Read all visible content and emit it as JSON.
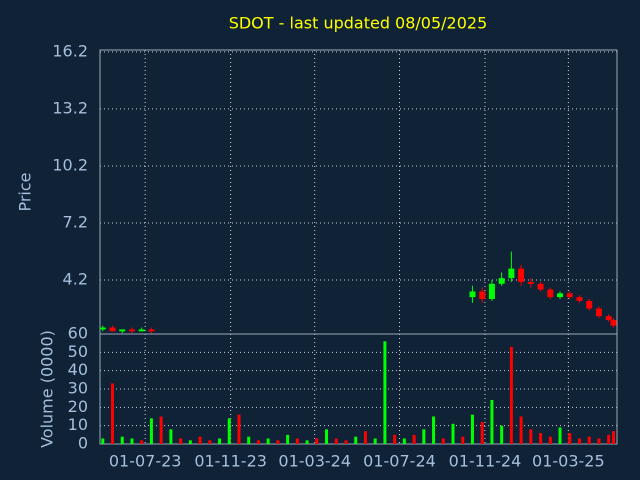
{
  "chart_data": [
    {
      "type": "candlestick",
      "title": "SDOT - last updated 08/05/2025",
      "y_label": "Price",
      "x": [
        "01-05-23",
        "15-05-23",
        "29-05-23",
        "12-06-23",
        "26-06-23",
        "10-07-23",
        "24-07-23",
        "07-08-23",
        "21-08-23",
        "04-09-23",
        "18-09-23",
        "02-10-23",
        "16-10-23",
        "30-10-23",
        "13-11-23",
        "27-11-23",
        "11-12-23",
        "25-12-23",
        "08-01-24",
        "22-01-24",
        "05-02-24",
        "19-02-24",
        "04-03-24",
        "18-03-24",
        "01-04-24",
        "15-04-24",
        "29-04-24",
        "13-05-24",
        "27-05-24",
        "10-06-24",
        "24-06-24",
        "08-07-24",
        "22-07-24",
        "05-08-24",
        "19-08-24",
        "02-09-24",
        "16-09-24",
        "30-09-24",
        "14-10-24",
        "28-10-24",
        "11-11-24",
        "25-11-24",
        "09-12-24",
        "23-12-24",
        "06-01-25",
        "20-01-25",
        "03-02-25",
        "17-02-25",
        "03-03-25",
        "17-03-25",
        "31-03-25",
        "14-04-25",
        "28-04-25",
        "05-05-25"
      ],
      "open": [
        1.6,
        1.7,
        1.5,
        1.6,
        1.5,
        1.6,
        null,
        null,
        null,
        null,
        null,
        null,
        null,
        null,
        null,
        null,
        null,
        null,
        null,
        null,
        null,
        null,
        null,
        null,
        null,
        null,
        null,
        null,
        null,
        null,
        null,
        null,
        null,
        null,
        null,
        null,
        null,
        null,
        3.3,
        3.6,
        3.2,
        4.0,
        4.3,
        4.8,
        4.1,
        4.0,
        3.7,
        3.3,
        3.5,
        3.3,
        3.1,
        2.7,
        2.3,
        2.1
      ],
      "high": [
        1.8,
        1.8,
        1.6,
        1.7,
        1.7,
        1.7,
        null,
        null,
        null,
        null,
        null,
        null,
        null,
        null,
        null,
        null,
        null,
        null,
        null,
        null,
        null,
        null,
        null,
        null,
        null,
        null,
        null,
        null,
        null,
        null,
        null,
        null,
        null,
        null,
        null,
        null,
        null,
        null,
        3.9,
        3.8,
        4.2,
        4.6,
        5.7,
        5.0,
        4.3,
        4.1,
        3.8,
        3.6,
        3.6,
        3.4,
        3.2,
        2.8,
        2.4,
        2.2
      ],
      "low": [
        1.5,
        1.5,
        1.4,
        1.4,
        1.5,
        1.4,
        null,
        null,
        null,
        null,
        null,
        null,
        null,
        null,
        null,
        null,
        null,
        null,
        null,
        null,
        null,
        null,
        null,
        null,
        null,
        null,
        null,
        null,
        null,
        null,
        null,
        null,
        null,
        null,
        null,
        null,
        null,
        null,
        3.0,
        3.0,
        3.1,
        3.9,
        4.1,
        3.9,
        3.8,
        3.6,
        3.2,
        3.2,
        3.2,
        3.0,
        2.6,
        2.2,
        2.0,
        1.7
      ],
      "close": [
        1.7,
        1.5,
        1.6,
        1.5,
        1.6,
        1.5,
        null,
        null,
        null,
        null,
        null,
        null,
        null,
        null,
        null,
        null,
        null,
        null,
        null,
        null,
        null,
        null,
        null,
        null,
        null,
        null,
        null,
        null,
        null,
        null,
        null,
        null,
        null,
        null,
        null,
        null,
        null,
        null,
        3.6,
        3.2,
        4.0,
        4.3,
        4.8,
        4.1,
        4.0,
        3.7,
        3.3,
        3.5,
        3.3,
        3.1,
        2.7,
        2.3,
        2.1,
        1.8
      ],
      "up_color": "#00ff00",
      "down_color": "#ff0000",
      "xlim": [
        "27-04-23",
        "10-05-25"
      ],
      "ylim": [
        1.36,
        16.3
      ],
      "yticks": [
        4.2,
        7.2,
        10.2,
        13.2,
        16.2
      ],
      "grid": true
    },
    {
      "type": "bar",
      "y_label": "Volume (0000)",
      "values": [
        3,
        33,
        4,
        3,
        2,
        14,
        15,
        8,
        3,
        2,
        4,
        2,
        3,
        14,
        16,
        4,
        2,
        3,
        2,
        5,
        3,
        2,
        3,
        8,
        3,
        2,
        4,
        7,
        3,
        56,
        5,
        3,
        5,
        8,
        15,
        3,
        11,
        4,
        16,
        12,
        24,
        10,
        53,
        15,
        8,
        6,
        4,
        9,
        6,
        3,
        4,
        3,
        5,
        7
      ],
      "colors": [
        "#00ff00",
        "#ff0000",
        "#00ff00",
        "#00ff00",
        "#ff0000",
        "#00ff00",
        "#ff0000",
        "#00ff00",
        "#ff0000",
        "#00ff00",
        "#ff0000",
        "#ff0000",
        "#00ff00",
        "#00ff00",
        "#ff0000",
        "#00ff00",
        "#ff0000",
        "#00ff00",
        "#ff0000",
        "#00ff00",
        "#ff0000",
        "#00ff00",
        "#ff0000",
        "#00ff00",
        "#ff0000",
        "#ff0000",
        "#00ff00",
        "#ff0000",
        "#00ff00",
        "#00ff00",
        "#ff0000",
        "#00ff00",
        "#ff0000",
        "#00ff00",
        "#00ff00",
        "#ff0000",
        "#00ff00",
        "#ff0000",
        "#00ff00",
        "#ff0000",
        "#00ff00",
        "#00ff00",
        "#ff0000",
        "#ff0000",
        "#ff0000",
        "#ff0000",
        "#ff0000",
        "#00ff00",
        "#ff0000",
        "#ff0000",
        "#ff0000",
        "#ff0000",
        "#ff0000",
        "#ff0000"
      ],
      "xticks": [
        "01-07-23",
        "01-11-23",
        "01-03-24",
        "01-07-24",
        "01-11-24",
        "01-03-25"
      ],
      "ylim": [
        0,
        60
      ],
      "yticks": [
        0,
        10,
        20,
        30,
        40,
        50,
        60
      ],
      "grid": true
    }
  ]
}
